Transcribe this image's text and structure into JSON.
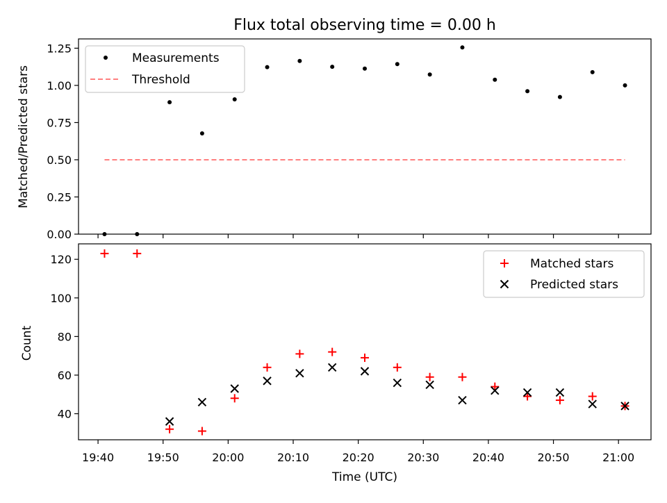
{
  "colors": {
    "measurement": "#000000",
    "threshold": "#ff7f7f",
    "matched": "#ff0000",
    "predicted": "#000000"
  },
  "chart_data": [
    {
      "type": "scatter",
      "title": "Flux total observing time = 0.00 h",
      "ylabel": "Matched/Predicted stars",
      "ylim": [
        0.0,
        1.3125
      ],
      "y_ticks": [
        0.0,
        0.25,
        0.5,
        0.75,
        1.0,
        1.25
      ],
      "y_tick_labels": [
        "0.00",
        "0.25",
        "0.50",
        "0.75",
        "1.00",
        "1.25"
      ],
      "legend_position": "top-left",
      "x": [
        "19:41",
        "19:46",
        "19:51",
        "19:56",
        "20:01",
        "20:06",
        "20:11",
        "20:16",
        "20:21",
        "20:26",
        "20:31",
        "20:36",
        "20:41",
        "20:46",
        "20:51",
        "20:56",
        "21:01"
      ],
      "series": [
        {
          "name": "Measurements",
          "marker": "dot",
          "values": [
            0.0,
            0.0,
            0.887,
            0.677,
            0.906,
            1.123,
            1.164,
            1.125,
            1.113,
            1.143,
            1.073,
            1.255,
            1.038,
            0.961,
            0.922,
            1.089,
            1.0
          ]
        },
        {
          "name": "Threshold",
          "style": "dashed",
          "x_range": [
            "19:41",
            "21:01"
          ],
          "value": 0.5
        }
      ]
    },
    {
      "type": "scatter",
      "xlabel": "Time (UTC)",
      "ylabel": "Count",
      "ylim": [
        26.5,
        128.0
      ],
      "y_ticks": [
        40,
        60,
        80,
        100,
        120
      ],
      "y_tick_labels": [
        "40",
        "60",
        "80",
        "100",
        "120"
      ],
      "x_ticks": [
        "19:40",
        "19:50",
        "20:00",
        "20:10",
        "20:20",
        "20:30",
        "20:40",
        "20:50",
        "21:00"
      ],
      "x_range": [
        "19:37",
        "21:05"
      ],
      "legend_position": "top-right",
      "x": [
        "19:41",
        "19:46",
        "19:51",
        "19:56",
        "20:01",
        "20:06",
        "20:11",
        "20:16",
        "20:21",
        "20:26",
        "20:31",
        "20:36",
        "20:41",
        "20:46",
        "20:51",
        "20:56",
        "21:01"
      ],
      "series": [
        {
          "name": "Matched stars",
          "marker": "plus",
          "values": [
            123,
            123,
            32,
            31,
            48,
            64,
            71,
            72,
            69,
            64,
            59,
            59,
            54,
            49,
            47,
            49,
            44
          ]
        },
        {
          "name": "Predicted stars",
          "marker": "x",
          "values": [
            null,
            null,
            36,
            46,
            53,
            57,
            61,
            64,
            62,
            56,
            55,
            47,
            52,
            51,
            51,
            45,
            44
          ]
        }
      ]
    }
  ]
}
